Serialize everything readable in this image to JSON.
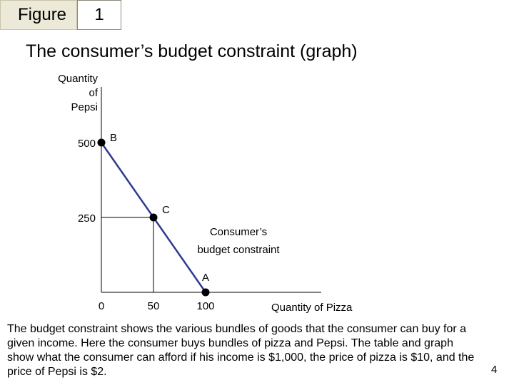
{
  "figure": {
    "label": "Figure",
    "number": "1"
  },
  "title": "The consumer’s budget constraint (graph)",
  "chart_data": {
    "type": "line",
    "xlabel": "Quantity of Pizza",
    "ylabel": "Quantity of Pepsi",
    "xlim": [
      0,
      100
    ],
    "ylim": [
      0,
      500
    ],
    "x_ticks": [
      "0",
      "50",
      "100"
    ],
    "y_ticks": [
      "250",
      "500"
    ],
    "series": [
      {
        "name": "Consumer’s budget constraint",
        "x": [
          0,
          100
        ],
        "y": [
          500,
          0
        ],
        "color": "#2e3a92"
      }
    ],
    "points": [
      {
        "label": "B",
        "x": 0,
        "y": 500
      },
      {
        "label": "C",
        "x": 50,
        "y": 250
      },
      {
        "label": "A",
        "x": 100,
        "y": 0
      }
    ],
    "annotation": "Consumer’s\nbudget constraint",
    "grid": false
  },
  "caption": "The budget constraint shows the various bundles of goods that the consumer can buy for a given income. Here the consumer buys bundles of pizza and Pepsi. The table and graph show what the consumer can afford if his income is $1,000, the price of pizza is $10, and the price of Pepsi is $2.",
  "page_number": "4"
}
